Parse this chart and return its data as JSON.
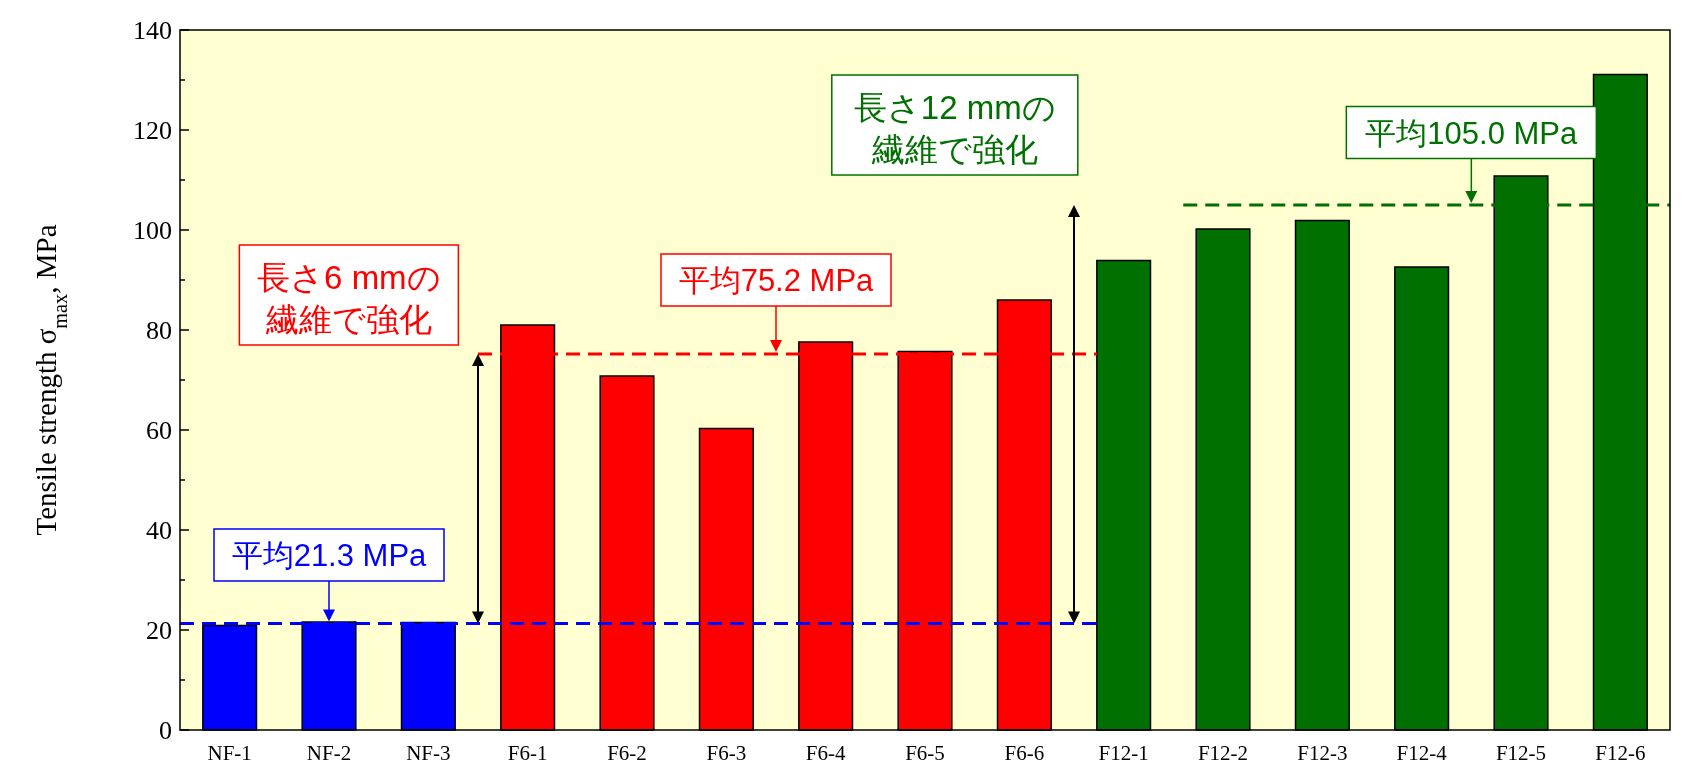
{
  "chart_data": {
    "type": "bar",
    "ylabel": "Tensile strength σ$_{max}$, MPa",
    "categories": [
      "NF-1",
      "NF-2",
      "NF-3",
      "F6-1",
      "F6-2",
      "F6-3",
      "F6-4",
      "F6-5",
      "F6-6",
      "F12-1",
      "F12-2",
      "F12-3",
      "F12-4",
      "F12-5",
      "F12-6"
    ],
    "values": [
      20.9,
      21.6,
      21.5,
      81.0,
      70.8,
      60.3,
      77.6,
      75.7,
      86.0,
      93.9,
      100.2,
      101.9,
      92.6,
      110.8,
      131.1
    ],
    "colors": [
      "#0000ff",
      "#0000ff",
      "#0000ff",
      "#ff0000",
      "#ff0000",
      "#ff0000",
      "#ff0000",
      "#ff0000",
      "#ff0000",
      "#007000",
      "#007000",
      "#007000",
      "#007000",
      "#007000",
      "#007000"
    ],
    "ylim": [
      0,
      140
    ],
    "yticks": [
      0,
      {
        "value": 10,
        "label": null
      },
      20,
      {
        "value": 30,
        "label": null
      },
      40,
      {
        "value": 50,
        "label": null
      },
      60,
      {
        "value": 70,
        "label": null
      },
      80,
      {
        "value": 90,
        "label": null
      },
      100,
      {
        "value": 110,
        "label": null
      },
      120,
      {
        "value": 130,
        "label": null
      },
      140
    ],
    "grid": false,
    "ref_lines": [
      {
        "axis": "y",
        "value": 21.3,
        "label": "平均21.3 MPa",
        "color": "#0000ff",
        "line_style": "dashed"
      },
      {
        "axis": "y",
        "value": 75.2,
        "label": "平均75.2 MPa",
        "color": "#ff0000",
        "line_style": "dashed"
      },
      {
        "axis": "y",
        "value": 105.0,
        "label": "平均105.0 MPa",
        "color": "#007000",
        "line_style": "dashed"
      }
    ],
    "annotations": [
      "長さ6 mmの繊維で強化",
      "長さ12 mmの繊維で強化"
    ]
  }
}
